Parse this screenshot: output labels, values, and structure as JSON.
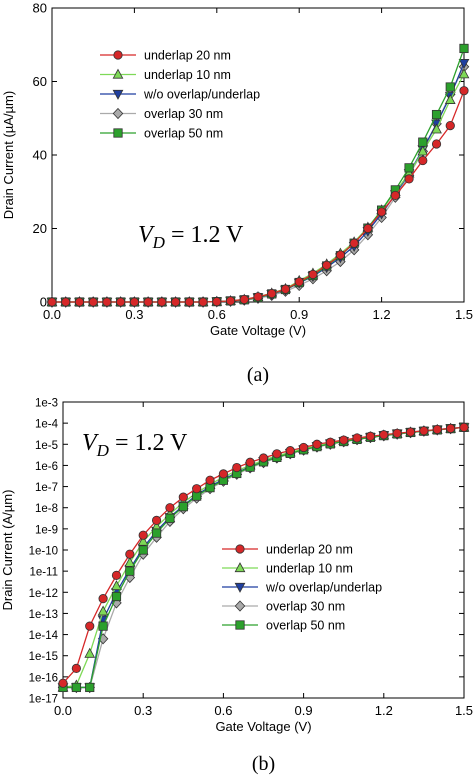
{
  "chart_data": [
    {
      "type": "line",
      "caption": "(a)",
      "xlabel": "Gate Voltage (V)",
      "ylabel": "Drain Current (µA/µm)",
      "xlim": [
        0.0,
        1.5
      ],
      "ylim": [
        0,
        80
      ],
      "xticks": [
        "0.0",
        "0.3",
        "0.6",
        "0.9",
        "1.2",
        "1.5"
      ],
      "yticks": [
        "0",
        "20",
        "40",
        "60",
        "80"
      ],
      "annotation": {
        "V": "V",
        "sub": "D",
        "rest": " = 1.2 V"
      },
      "legend_position": "upper-left",
      "x": [
        0.0,
        0.05,
        0.1,
        0.15,
        0.2,
        0.25,
        0.3,
        0.35,
        0.4,
        0.45,
        0.5,
        0.55,
        0.6,
        0.65,
        0.7,
        0.75,
        0.8,
        0.85,
        0.9,
        0.95,
        1.0,
        1.05,
        1.1,
        1.15,
        1.2,
        1.25,
        1.3,
        1.35,
        1.4,
        1.45,
        1.5
      ],
      "series": [
        {
          "name": "underlap 20 nm",
          "color": "#d62728",
          "marker": "circle",
          "values": [
            0,
            0,
            0,
            0,
            0,
            0,
            0,
            0,
            0,
            0,
            0,
            0,
            0.1,
            0.3,
            0.7,
            1.4,
            2.3,
            3.5,
            5.5,
            7.5,
            10,
            12.8,
            16,
            20,
            24.5,
            29,
            33.5,
            38.5,
            43,
            48,
            57.5
          ]
        },
        {
          "name": "underlap 10 nm",
          "color": "#7ed957",
          "marker": "triangle-up",
          "values": [
            0,
            0,
            0,
            0,
            0,
            0,
            0,
            0,
            0,
            0,
            0,
            0,
            0.1,
            0.3,
            0.7,
            1.4,
            2.4,
            3.6,
            5.8,
            7.8,
            10.3,
            13.2,
            16.3,
            20.3,
            25,
            30,
            35,
            41,
            47,
            55,
            62
          ]
        },
        {
          "name": "w/o overlap/underlap",
          "color": "#1f3fa0",
          "marker": "triangle-down",
          "values": [
            0,
            0,
            0,
            0,
            0,
            0,
            0,
            0,
            0,
            0,
            0,
            0,
            0.1,
            0.3,
            0.6,
            1.2,
            2.1,
            3.3,
            5.2,
            7,
            9.4,
            12.1,
            15.2,
            19.3,
            24,
            29.3,
            35,
            41.5,
            48.5,
            56,
            65
          ]
        },
        {
          "name": "overlap 30 nm",
          "color": "#aaaaaa",
          "marker": "diamond",
          "values": [
            0,
            0,
            0,
            0,
            0,
            0,
            0,
            0,
            0,
            0,
            0,
            0,
            0.1,
            0.2,
            0.5,
            1,
            1.8,
            2.9,
            4.5,
            6.3,
            8.5,
            11,
            14.2,
            18.3,
            23,
            28.5,
            34.5,
            41,
            48.5,
            56.5,
            64
          ]
        },
        {
          "name": "overlap 50 nm",
          "color": "#2ca02c",
          "marker": "square",
          "values": [
            0,
            0,
            0,
            0,
            0,
            0,
            0,
            0,
            0,
            0,
            0,
            0,
            0.1,
            0.3,
            0.6,
            1.2,
            2.2,
            3.4,
            5.3,
            7.2,
            9.8,
            12.6,
            16,
            20.1,
            25,
            30.5,
            36.5,
            43.5,
            51,
            58.5,
            69
          ]
        }
      ]
    },
    {
      "type": "line",
      "caption": "(b)",
      "xlabel": "Gate Voltage (V)",
      "ylabel": "Drain Current (A/µm)",
      "xlim": [
        0.0,
        1.5
      ],
      "ylim_log10": [
        -17,
        -3
      ],
      "yscale": "log",
      "xticks": [
        "0.0",
        "0.3",
        "0.6",
        "0.9",
        "1.2",
        "1.5"
      ],
      "yticks": [
        "1e-3",
        "1e-4",
        "1e-5",
        "1e-6",
        "1e-7",
        "1e-8",
        "1e-9",
        "1e-10",
        "1e-11",
        "1e-12",
        "1e-13",
        "1e-14",
        "1e-15",
        "1e-16",
        "1e-17"
      ],
      "annotation": {
        "V": "V",
        "sub": "D",
        "rest": " = 1.2 V"
      },
      "legend_position": "lower-right",
      "x": [
        0.0,
        0.05,
        0.1,
        0.15,
        0.2,
        0.25,
        0.3,
        0.35,
        0.4,
        0.45,
        0.5,
        0.55,
        0.6,
        0.65,
        0.7,
        0.75,
        0.8,
        0.85,
        0.9,
        0.95,
        1.0,
        1.05,
        1.1,
        1.15,
        1.2,
        1.25,
        1.3,
        1.35,
        1.4,
        1.45,
        1.5
      ],
      "series": [
        {
          "name": "underlap 20 nm",
          "color": "#d62728",
          "marker": "circle",
          "log10_values": [
            -16.3,
            -15.6,
            -13.6,
            -12.3,
            -11.2,
            -10.2,
            -9.3,
            -8.6,
            -8.0,
            -7.5,
            -7.1,
            -6.7,
            -6.4,
            -6.1,
            -5.85,
            -5.65,
            -5.45,
            -5.3,
            -5.15,
            -5.0,
            -4.9,
            -4.8,
            -4.7,
            -4.62,
            -4.55,
            -4.48,
            -4.42,
            -4.36,
            -4.3,
            -4.25,
            -4.2
          ]
        },
        {
          "name": "underlap 10 nm",
          "color": "#7ed957",
          "marker": "triangle-up",
          "log10_values": [
            -16.5,
            -16.4,
            -14.9,
            -12.9,
            -11.7,
            -10.6,
            -9.6,
            -8.9,
            -8.3,
            -7.75,
            -7.3,
            -6.9,
            -6.55,
            -6.25,
            -6.0,
            -5.75,
            -5.55,
            -5.38,
            -5.22,
            -5.07,
            -4.95,
            -4.84,
            -4.74,
            -4.65,
            -4.57,
            -4.5,
            -4.43,
            -4.37,
            -4.31,
            -4.26,
            -4.2
          ]
        },
        {
          "name": "w/o overlap/underlap",
          "color": "#1f3fa0",
          "marker": "triangle-down",
          "log10_values": [
            -16.5,
            -16.5,
            -16.5,
            -13.3,
            -12.0,
            -10.9,
            -9.9,
            -9.1,
            -8.45,
            -7.9,
            -7.4,
            -7.0,
            -6.65,
            -6.35,
            -6.05,
            -5.8,
            -5.6,
            -5.42,
            -5.25,
            -5.1,
            -4.97,
            -4.86,
            -4.76,
            -4.67,
            -4.58,
            -4.5,
            -4.43,
            -4.37,
            -4.31,
            -4.25,
            -4.2
          ]
        },
        {
          "name": "overlap 30 nm",
          "color": "#aaaaaa",
          "marker": "diamond",
          "log10_values": [
            -16.5,
            -16.5,
            -16.5,
            -14.2,
            -12.5,
            -11.3,
            -10.2,
            -9.4,
            -8.65,
            -8.05,
            -7.55,
            -7.1,
            -6.75,
            -6.42,
            -6.12,
            -5.87,
            -5.65,
            -5.45,
            -5.28,
            -5.13,
            -5.0,
            -4.88,
            -4.78,
            -4.68,
            -4.6,
            -4.52,
            -4.45,
            -4.38,
            -4.32,
            -4.26,
            -4.2
          ]
        },
        {
          "name": "overlap 50 nm",
          "color": "#2ca02c",
          "marker": "square",
          "log10_values": [
            -16.5,
            -16.5,
            -16.5,
            -13.6,
            -12.2,
            -11.0,
            -10.0,
            -9.2,
            -8.5,
            -7.95,
            -7.45,
            -7.05,
            -6.7,
            -6.38,
            -6.08,
            -5.83,
            -5.62,
            -5.43,
            -5.26,
            -5.11,
            -4.98,
            -4.87,
            -4.77,
            -4.67,
            -4.59,
            -4.51,
            -4.44,
            -4.38,
            -4.32,
            -4.26,
            -4.2
          ]
        }
      ]
    }
  ]
}
